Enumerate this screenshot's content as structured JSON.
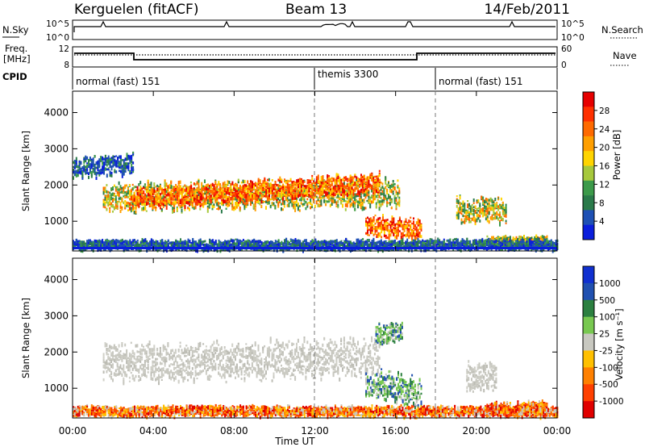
{
  "header": {
    "radar": "Kerguelen (fitACF)",
    "beam": "Beam 13",
    "date": "14/Feb/2011"
  },
  "strips": {
    "nsky_label": "N.Sky",
    "nsky_ticks": [
      "10^5",
      "10^0"
    ],
    "nsearch_label": "N.Search",
    "nsearch_ticks": [
      "10^5",
      "10^0"
    ],
    "freq_label_1": "Freq.",
    "freq_label_2": "[MHz]",
    "freq_ticks": [
      "12",
      "8"
    ],
    "nave_label": "Nave",
    "nave_ticks": [
      "60",
      "0"
    ],
    "cpid_label": "CPID",
    "cpid_segments": [
      {
        "label": "normal (fast) 151",
        "start_h": 0,
        "end_h": 12
      },
      {
        "label": "themis 3300",
        "start_h": 12,
        "end_h": 18
      },
      {
        "label": "normal (fast) 151",
        "start_h": 18,
        "end_h": 24
      }
    ]
  },
  "power_colorbar": {
    "title": "Power [dB]",
    "ticks": [
      "28",
      "24",
      "20",
      "16",
      "12",
      "8",
      "4"
    ],
    "colors": [
      "#e60000",
      "#ff3000",
      "#ff6a00",
      "#ff9f00",
      "#ffd400",
      "#a6c83c",
      "#3c9a4a",
      "#2a7a4a",
      "#1e50b4",
      "#0a1edc"
    ]
  },
  "velocity_colorbar": {
    "title": "Velocity [m s⁻¹]",
    "ticks": [
      "1000",
      "500",
      "100",
      "25",
      "-25",
      "-100",
      "-500",
      "-1000"
    ],
    "colors": [
      "#1030d0",
      "#2050b0",
      "#2c8040",
      "#78c850",
      "#c8c8c0",
      "#ffc000",
      "#ff8000",
      "#ff4000",
      "#e00000"
    ]
  },
  "axes": {
    "ylabel": "Slant Range [km]",
    "xlabel": "Time UT",
    "x_ticks": [
      "00:00",
      "04:00",
      "08:00",
      "12:00",
      "16:00",
      "20:00",
      "00:00"
    ],
    "y_ticks": [
      "1000",
      "2000",
      "3000",
      "4000"
    ]
  },
  "chart_data": [
    {
      "type": "heatmap",
      "name": "power",
      "xlabel": "Time UT",
      "ylabel": "Slant Range [km]",
      "xlim": [
        0,
        24
      ],
      "ylim": [
        180,
        4590
      ],
      "colorbar_label": "Power [dB]",
      "regions": [
        {
          "x0": 1.5,
          "x1": 16.2,
          "y_center_start": 1700,
          "y_center_end": 1800,
          "thickness": 700,
          "level": "high"
        },
        {
          "x0": 2.8,
          "x1": 15.2,
          "y_center_start": 1650,
          "y_center_end": 2100,
          "thickness": 500,
          "level": "max"
        },
        {
          "x0": 14.5,
          "x1": 17.3,
          "y_center_start": 900,
          "y_center_end": 800,
          "thickness": 500,
          "level": "max"
        },
        {
          "x0": 0.0,
          "x1": 3.0,
          "y_center_start": 2500,
          "y_center_end": 2600,
          "thickness": 500,
          "level": "low"
        },
        {
          "x0": 19.0,
          "x1": 21.5,
          "y_center_start": 1350,
          "y_center_end": 1300,
          "thickness": 600,
          "level": "high"
        },
        {
          "x0": 20.5,
          "x1": 23.5,
          "y_center_start": 450,
          "y_center_end": 500,
          "thickness": 250,
          "level": "high"
        },
        {
          "x0": 0.0,
          "x1": 24.0,
          "y_center_start": 380,
          "y_center_end": 380,
          "thickness": 250,
          "level": "low"
        }
      ]
    },
    {
      "type": "heatmap",
      "name": "velocity",
      "xlabel": "Time UT",
      "ylabel": "Slant Range [km]",
      "xlim": [
        0,
        24
      ],
      "ylim": [
        180,
        4590
      ],
      "colorbar_label": "Velocity [m s⁻¹]",
      "regions": [
        {
          "x0": 1.5,
          "x1": 15.2,
          "y_center_start": 1700,
          "y_center_end": 1900,
          "thickness": 900,
          "level": "ground"
        },
        {
          "x0": 14.5,
          "x1": 17.3,
          "y_center_start": 1200,
          "y_center_end": 900,
          "thickness": 700,
          "level": "positive"
        },
        {
          "x0": 15.0,
          "x1": 16.3,
          "y_center_start": 2500,
          "y_center_end": 2600,
          "thickness": 500,
          "level": "positive"
        },
        {
          "x0": 19.5,
          "x1": 21.0,
          "y_center_start": 1350,
          "y_center_end": 1300,
          "thickness": 700,
          "level": "ground"
        },
        {
          "x0": 20.5,
          "x1": 23.5,
          "y_center_start": 450,
          "y_center_end": 500,
          "thickness": 300,
          "level": "negative"
        },
        {
          "x0": 0.0,
          "x1": 24.0,
          "y_center_start": 400,
          "y_center_end": 400,
          "thickness": 250,
          "level": "negative"
        }
      ]
    }
  ]
}
